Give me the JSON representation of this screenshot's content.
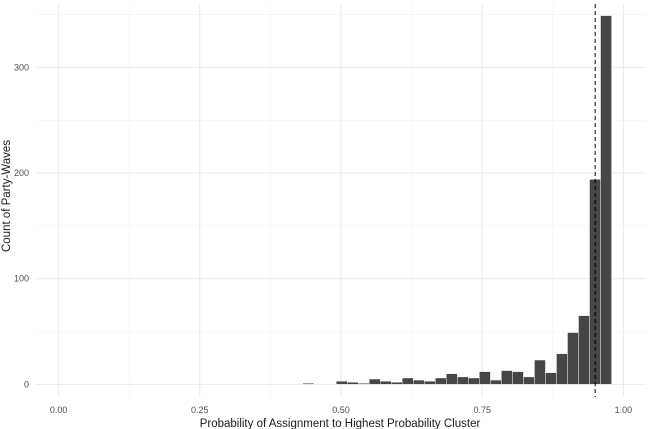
{
  "chart_data": {
    "type": "bar",
    "title": "",
    "xlabel": "Probability of Assignment to Highest Probability Cluster",
    "ylabel": "Count of Party-Waves",
    "xlim": [
      -0.04,
      1.04
    ],
    "ylim": [
      -12,
      360
    ],
    "x_ticks": [
      0.0,
      0.25,
      0.5,
      0.75,
      1.0
    ],
    "x_tick_labels": [
      "0.00",
      "0.25",
      "0.50",
      "0.75",
      "1.00"
    ],
    "y_ticks": [
      0,
      100,
      200,
      300
    ],
    "y_tick_labels": [
      "0",
      "100",
      "200",
      "300"
    ],
    "grid": true,
    "bin_width": 0.0195,
    "bins": [
      {
        "x": 0.4325,
        "count": 1
      },
      {
        "x": 0.4915,
        "count": 3
      },
      {
        "x": 0.511,
        "count": 2
      },
      {
        "x": 0.5305,
        "count": 1
      },
      {
        "x": 0.55,
        "count": 5
      },
      {
        "x": 0.5695,
        "count": 3
      },
      {
        "x": 0.589,
        "count": 2
      },
      {
        "x": 0.6085,
        "count": 6
      },
      {
        "x": 0.628,
        "count": 4
      },
      {
        "x": 0.6475,
        "count": 3
      },
      {
        "x": 0.667,
        "count": 6
      },
      {
        "x": 0.6865,
        "count": 10
      },
      {
        "x": 0.706,
        "count": 7
      },
      {
        "x": 0.7255,
        "count": 6
      },
      {
        "x": 0.745,
        "count": 12
      },
      {
        "x": 0.7645,
        "count": 4
      },
      {
        "x": 0.784,
        "count": 13
      },
      {
        "x": 0.8035,
        "count": 12
      },
      {
        "x": 0.823,
        "count": 7
      },
      {
        "x": 0.8425,
        "count": 23
      },
      {
        "x": 0.862,
        "count": 11
      },
      {
        "x": 0.8815,
        "count": 29
      },
      {
        "x": 0.901,
        "count": 49
      },
      {
        "x": 0.9205,
        "count": 65
      },
      {
        "x": 0.94,
        "count": 194
      },
      {
        "x": 0.9595,
        "count": 349
      }
    ],
    "vline": {
      "x": 0.95,
      "style": "dashed"
    },
    "bar_color": "#464646"
  }
}
